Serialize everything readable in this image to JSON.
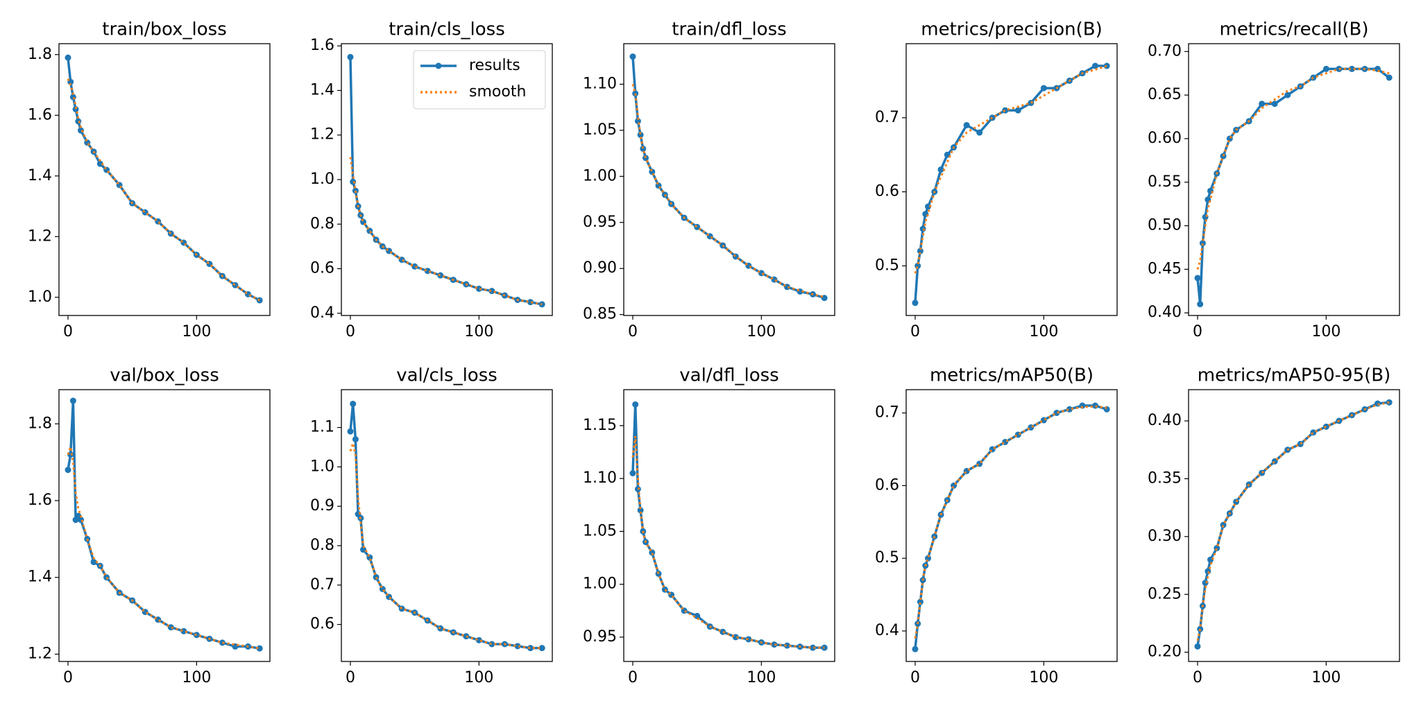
{
  "chart_data": [
    {
      "type": "line",
      "title": "train/box_loss",
      "x": [
        0,
        2,
        4,
        6,
        8,
        10,
        15,
        20,
        25,
        30,
        40,
        50,
        60,
        70,
        80,
        90,
        100,
        110,
        120,
        130,
        140,
        149
      ],
      "xlim": [
        -7,
        157
      ],
      "xticks": [
        0,
        100
      ],
      "ylim": [
        0.94,
        1.836
      ],
      "yticks": [
        {
          "value": 1.0,
          "label": "1.0"
        },
        1.2,
        1.4,
        1.6,
        1.8
      ],
      "series": [
        {
          "name": "results",
          "color": "#1f77b4",
          "values": [
            1.79,
            1.71,
            1.66,
            1.62,
            1.58,
            1.55,
            1.51,
            1.48,
            1.44,
            1.42,
            1.37,
            1.31,
            1.28,
            1.25,
            1.21,
            1.18,
            1.14,
            1.11,
            1.07,
            1.04,
            1.01,
            0.99
          ]
        },
        {
          "name": "smooth",
          "color": "#ff7f0e",
          "values": [
            1.72,
            1.7,
            1.67,
            1.63,
            1.59,
            1.56,
            1.51,
            1.48,
            1.45,
            1.42,
            1.37,
            1.31,
            1.28,
            1.25,
            1.21,
            1.18,
            1.14,
            1.11,
            1.07,
            1.04,
            1.01,
            0.99
          ]
        }
      ]
    },
    {
      "type": "line",
      "title": "train/cls_loss",
      "legend": "upper right",
      "x": [
        0,
        2,
        4,
        6,
        8,
        10,
        15,
        20,
        25,
        30,
        40,
        50,
        60,
        70,
        80,
        90,
        100,
        110,
        120,
        130,
        140,
        149
      ],
      "xlim": [
        -7,
        157
      ],
      "xticks": [
        0,
        100
      ],
      "ylim": [
        0.39,
        1.61
      ],
      "yticks": [
        0.4,
        0.6,
        0.8,
        {
          "value": 1.0,
          "label": "1.0"
        },
        1.2,
        1.4,
        1.6
      ],
      "series": [
        {
          "name": "results",
          "color": "#1f77b4",
          "values": [
            1.55,
            0.99,
            0.95,
            0.88,
            0.84,
            0.81,
            0.77,
            0.73,
            0.7,
            0.68,
            0.64,
            0.61,
            0.59,
            0.57,
            0.55,
            0.53,
            0.51,
            0.5,
            0.48,
            0.46,
            0.45,
            0.44
          ]
        },
        {
          "name": "smooth",
          "color": "#ff7f0e",
          "values": [
            1.1,
            1.02,
            0.95,
            0.88,
            0.84,
            0.81,
            0.77,
            0.73,
            0.7,
            0.68,
            0.64,
            0.61,
            0.59,
            0.57,
            0.55,
            0.53,
            0.51,
            0.5,
            0.48,
            0.46,
            0.45,
            0.44
          ]
        }
      ]
    },
    {
      "type": "line",
      "title": "train/dfl_loss",
      "x": [
        0,
        2,
        4,
        6,
        8,
        10,
        15,
        20,
        25,
        30,
        40,
        50,
        60,
        70,
        80,
        90,
        100,
        110,
        120,
        130,
        140,
        149
      ],
      "xlim": [
        -7,
        157
      ],
      "xticks": [
        0,
        100
      ],
      "ylim": [
        0.849,
        1.144
      ],
      "yticks": [
        0.85,
        {
          "value": 0.9,
          "label": "0.90"
        },
        0.95,
        {
          "value": 1.0,
          "label": "1.00"
        },
        1.05,
        {
          "value": 1.1,
          "label": "1.10"
        }
      ],
      "series": [
        {
          "name": "results",
          "color": "#1f77b4",
          "values": [
            1.13,
            1.09,
            1.06,
            1.045,
            1.03,
            1.02,
            1.005,
            0.99,
            0.98,
            0.97,
            0.955,
            0.945,
            0.935,
            0.925,
            0.913,
            0.903,
            0.895,
            0.888,
            0.88,
            0.875,
            0.872,
            0.868
          ]
        },
        {
          "name": "smooth",
          "color": "#ff7f0e",
          "values": [
            1.1,
            1.09,
            1.065,
            1.045,
            1.03,
            1.02,
            1.005,
            0.99,
            0.98,
            0.97,
            0.955,
            0.945,
            0.935,
            0.925,
            0.913,
            0.903,
            0.895,
            0.888,
            0.88,
            0.876,
            0.872,
            0.869
          ]
        }
      ]
    },
    {
      "type": "line",
      "title": "metrics/precision(B)",
      "x": [
        0,
        2,
        4,
        6,
        8,
        10,
        15,
        20,
        25,
        30,
        40,
        50,
        60,
        70,
        80,
        90,
        100,
        110,
        120,
        130,
        140,
        149
      ],
      "xlim": [
        -7,
        157
      ],
      "xticks": [
        0,
        100
      ],
      "ylim": [
        0.433,
        0.8
      ],
      "yticks": [
        0.5,
        0.6,
        0.7
      ],
      "series": [
        {
          "name": "results",
          "color": "#1f77b4",
          "values": [
            0.45,
            0.5,
            0.52,
            0.55,
            0.57,
            0.58,
            0.6,
            0.63,
            0.65,
            0.66,
            0.69,
            0.68,
            0.7,
            0.71,
            0.71,
            0.72,
            0.74,
            0.74,
            0.75,
            0.76,
            0.77,
            0.77
          ]
        },
        {
          "name": "smooth",
          "color": "#ff7f0e",
          "values": [
            0.49,
            0.5,
            0.52,
            0.54,
            0.56,
            0.57,
            0.6,
            0.62,
            0.64,
            0.66,
            0.68,
            0.69,
            0.7,
            0.71,
            0.715,
            0.72,
            0.73,
            0.74,
            0.75,
            0.76,
            0.765,
            0.77
          ]
        }
      ]
    },
    {
      "type": "line",
      "title": "metrics/recall(B)",
      "x": [
        0,
        2,
        4,
        6,
        8,
        10,
        15,
        20,
        25,
        30,
        40,
        50,
        60,
        70,
        80,
        90,
        100,
        110,
        120,
        130,
        140,
        149
      ],
      "xlim": [
        -7,
        157
      ],
      "xticks": [
        0,
        100
      ],
      "ylim": [
        0.397,
        0.709
      ],
      "yticks": [
        {
          "value": 0.4,
          "label": "0.40"
        },
        0.45,
        {
          "value": 0.5,
          "label": "0.50"
        },
        0.55,
        {
          "value": 0.6,
          "label": "0.60"
        },
        0.65,
        {
          "value": 0.7,
          "label": "0.70"
        }
      ],
      "series": [
        {
          "name": "results",
          "color": "#1f77b4",
          "values": [
            0.44,
            0.41,
            0.48,
            0.51,
            0.53,
            0.54,
            0.56,
            0.58,
            0.6,
            0.61,
            0.62,
            0.64,
            0.64,
            0.65,
            0.66,
            0.67,
            0.68,
            0.68,
            0.68,
            0.68,
            0.68,
            0.67
          ]
        },
        {
          "name": "smooth",
          "color": "#ff7f0e",
          "values": [
            0.45,
            0.46,
            0.48,
            0.5,
            0.52,
            0.53,
            0.56,
            0.58,
            0.6,
            0.61,
            0.62,
            0.635,
            0.645,
            0.655,
            0.66,
            0.67,
            0.675,
            0.68,
            0.68,
            0.68,
            0.678,
            0.675
          ]
        }
      ]
    },
    {
      "type": "line",
      "title": "val/box_loss",
      "x": [
        0,
        2,
        4,
        6,
        8,
        10,
        15,
        20,
        25,
        30,
        40,
        50,
        60,
        70,
        80,
        90,
        100,
        110,
        120,
        130,
        140,
        149
      ],
      "xlim": [
        -7,
        157
      ],
      "xticks": [
        0,
        100
      ],
      "ylim": [
        1.181,
        1.889
      ],
      "yticks": [
        1.2,
        1.4,
        1.6,
        1.8
      ],
      "series": [
        {
          "name": "results",
          "color": "#1f77b4",
          "values": [
            1.68,
            1.72,
            1.86,
            1.55,
            1.56,
            1.55,
            1.5,
            1.44,
            1.43,
            1.4,
            1.36,
            1.34,
            1.31,
            1.29,
            1.27,
            1.26,
            1.25,
            1.24,
            1.23,
            1.22,
            1.22,
            1.215
          ]
        },
        {
          "name": "smooth",
          "color": "#ff7f0e",
          "values": [
            1.72,
            1.74,
            1.7,
            1.62,
            1.58,
            1.56,
            1.5,
            1.45,
            1.43,
            1.4,
            1.36,
            1.34,
            1.31,
            1.29,
            1.27,
            1.26,
            1.25,
            1.24,
            1.23,
            1.225,
            1.22,
            1.215
          ]
        }
      ]
    },
    {
      "type": "line",
      "title": "val/cls_loss",
      "x": [
        0,
        2,
        4,
        6,
        8,
        10,
        15,
        20,
        25,
        30,
        40,
        50,
        60,
        70,
        80,
        90,
        100,
        110,
        120,
        130,
        140,
        149
      ],
      "xlim": [
        -7,
        157
      ],
      "xticks": [
        0,
        100
      ],
      "ylim": [
        0.506,
        1.196
      ],
      "yticks": [
        0.6,
        0.7,
        0.8,
        0.9,
        {
          "value": 1.0,
          "label": "1.0"
        },
        1.1
      ],
      "series": [
        {
          "name": "results",
          "color": "#1f77b4",
          "values": [
            1.09,
            1.16,
            1.07,
            0.88,
            0.87,
            0.79,
            0.77,
            0.72,
            0.69,
            0.67,
            0.64,
            0.63,
            0.61,
            0.59,
            0.58,
            0.57,
            0.56,
            0.55,
            0.55,
            0.545,
            0.54,
            0.54
          ]
        },
        {
          "name": "smooth",
          "color": "#ff7f0e",
          "values": [
            1.04,
            1.06,
            1.03,
            0.92,
            0.86,
            0.8,
            0.77,
            0.72,
            0.69,
            0.67,
            0.64,
            0.63,
            0.61,
            0.59,
            0.58,
            0.57,
            0.56,
            0.55,
            0.55,
            0.545,
            0.54,
            0.54
          ]
        }
      ]
    },
    {
      "type": "line",
      "title": "val/dfl_loss",
      "x": [
        0,
        2,
        4,
        6,
        8,
        10,
        15,
        20,
        25,
        30,
        40,
        50,
        60,
        70,
        80,
        90,
        100,
        110,
        120,
        130,
        140,
        149
      ],
      "xlim": [
        -7,
        157
      ],
      "xticks": [
        0,
        100
      ],
      "ylim": [
        0.927,
        1.184
      ],
      "yticks": [
        0.95,
        {
          "value": 1.0,
          "label": "1.00"
        },
        1.05,
        {
          "value": 1.1,
          "label": "1.10"
        },
        1.15
      ],
      "series": [
        {
          "name": "results",
          "color": "#1f77b4",
          "values": [
            1.105,
            1.17,
            1.09,
            1.07,
            1.05,
            1.04,
            1.03,
            1.01,
            0.995,
            0.99,
            0.975,
            0.97,
            0.96,
            0.955,
            0.95,
            0.948,
            0.945,
            0.943,
            0.942,
            0.941,
            0.94,
            0.94
          ]
        },
        {
          "name": "smooth",
          "color": "#ff7f0e",
          "values": [
            1.12,
            1.14,
            1.1,
            1.07,
            1.05,
            1.04,
            1.03,
            1.01,
            0.995,
            0.99,
            0.975,
            0.968,
            0.96,
            0.955,
            0.95,
            0.948,
            0.945,
            0.943,
            0.942,
            0.941,
            0.94,
            0.94
          ]
        }
      ]
    },
    {
      "type": "line",
      "title": "metrics/mAP50(B)",
      "x": [
        0,
        2,
        4,
        6,
        8,
        10,
        15,
        20,
        25,
        30,
        40,
        50,
        60,
        70,
        80,
        90,
        100,
        110,
        120,
        130,
        140,
        149
      ],
      "xlim": [
        -7,
        157
      ],
      "xticks": [
        0,
        100
      ],
      "ylim": [
        0.358,
        0.732
      ],
      "yticks": [
        0.4,
        0.5,
        0.6,
        0.7
      ],
      "series": [
        {
          "name": "results",
          "color": "#1f77b4",
          "values": [
            0.375,
            0.41,
            0.44,
            0.47,
            0.49,
            0.5,
            0.53,
            0.56,
            0.58,
            0.6,
            0.62,
            0.63,
            0.65,
            0.66,
            0.67,
            0.68,
            0.69,
            0.7,
            0.705,
            0.71,
            0.71,
            0.705
          ]
        },
        {
          "name": "smooth",
          "color": "#ff7f0e",
          "values": [
            0.39,
            0.41,
            0.44,
            0.47,
            0.49,
            0.5,
            0.53,
            0.56,
            0.58,
            0.6,
            0.62,
            0.63,
            0.65,
            0.66,
            0.67,
            0.68,
            0.69,
            0.7,
            0.705,
            0.708,
            0.709,
            0.707
          ]
        }
      ]
    },
    {
      "type": "line",
      "title": "metrics/mAP50-95(B)",
      "x": [
        0,
        2,
        4,
        6,
        8,
        10,
        15,
        20,
        25,
        30,
        40,
        50,
        60,
        70,
        80,
        90,
        100,
        110,
        120,
        130,
        140,
        149
      ],
      "xlim": [
        -7,
        157
      ],
      "xticks": [
        0,
        100
      ],
      "ylim": [
        0.192,
        0.427
      ],
      "yticks": [
        {
          "value": 0.2,
          "label": "0.20"
        },
        0.25,
        {
          "value": 0.3,
          "label": "0.30"
        },
        0.35,
        {
          "value": 0.4,
          "label": "0.40"
        }
      ],
      "series": [
        {
          "name": "results",
          "color": "#1f77b4",
          "values": [
            0.205,
            0.22,
            0.24,
            0.26,
            0.27,
            0.28,
            0.29,
            0.31,
            0.32,
            0.33,
            0.345,
            0.355,
            0.365,
            0.375,
            0.38,
            0.39,
            0.395,
            0.4,
            0.405,
            0.41,
            0.415,
            0.416
          ]
        },
        {
          "name": "smooth",
          "color": "#ff7f0e",
          "values": [
            0.21,
            0.22,
            0.24,
            0.255,
            0.265,
            0.275,
            0.29,
            0.31,
            0.32,
            0.33,
            0.345,
            0.355,
            0.365,
            0.375,
            0.38,
            0.39,
            0.395,
            0.4,
            0.405,
            0.41,
            0.414,
            0.416
          ]
        }
      ]
    }
  ]
}
